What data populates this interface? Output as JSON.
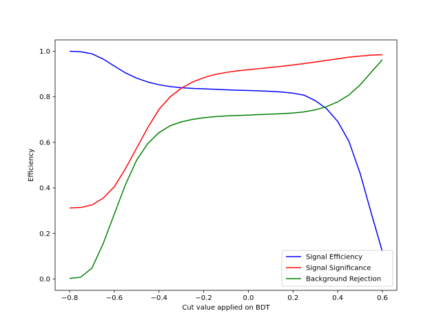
{
  "chart_data": {
    "type": "line",
    "title": "",
    "xlabel": "Cut value applied on BDT",
    "ylabel": "Efficiency",
    "xlim": [
      -0.865,
      0.665
    ],
    "ylim": [
      -0.05,
      1.05
    ],
    "xticks": [
      -0.8,
      -0.6,
      -0.4,
      -0.2,
      0.0,
      0.2,
      0.4,
      0.6
    ],
    "xtick_labels": [
      "−0.8",
      "−0.6",
      "−0.4",
      "−0.2",
      "0.0",
      "0.2",
      "0.4",
      "0.6"
    ],
    "yticks": [
      0.0,
      0.2,
      0.4,
      0.6,
      0.8,
      1.0
    ],
    "ytick_labels": [
      "0.0",
      "0.2",
      "0.4",
      "0.6",
      "0.8",
      "1.0"
    ],
    "grid": false,
    "legend_position": "lower-right",
    "x": [
      -0.8,
      -0.75,
      -0.7,
      -0.65,
      -0.6,
      -0.55,
      -0.5,
      -0.45,
      -0.4,
      -0.35,
      -0.3,
      -0.25,
      -0.2,
      -0.15,
      -0.1,
      -0.05,
      0.0,
      0.05,
      0.1,
      0.15,
      0.2,
      0.25,
      0.3,
      0.35,
      0.4,
      0.45,
      0.5,
      0.55,
      0.6
    ],
    "series": [
      {
        "name": "Signal Efficiency",
        "color": "#0000ff",
        "values": [
          1.0,
          0.998,
          0.989,
          0.966,
          0.935,
          0.905,
          0.882,
          0.865,
          0.853,
          0.845,
          0.84,
          0.837,
          0.835,
          0.833,
          0.831,
          0.829,
          0.828,
          0.826,
          0.824,
          0.821,
          0.816,
          0.807,
          0.783,
          0.748,
          0.692,
          0.605,
          0.465,
          0.29,
          0.12
        ]
      },
      {
        "name": "Signal Significance",
        "color": "#ff0000",
        "values": [
          0.312,
          0.314,
          0.325,
          0.355,
          0.405,
          0.485,
          0.575,
          0.665,
          0.745,
          0.8,
          0.838,
          0.865,
          0.884,
          0.898,
          0.907,
          0.914,
          0.919,
          0.924,
          0.929,
          0.934,
          0.94,
          0.946,
          0.953,
          0.96,
          0.967,
          0.974,
          0.979,
          0.983,
          0.985
        ]
      },
      {
        "name": "Background Rejection",
        "color": "#008000",
        "values": [
          0.002,
          0.008,
          0.048,
          0.155,
          0.285,
          0.415,
          0.522,
          0.595,
          0.643,
          0.673,
          0.69,
          0.701,
          0.708,
          0.713,
          0.716,
          0.718,
          0.72,
          0.722,
          0.724,
          0.726,
          0.729,
          0.734,
          0.743,
          0.757,
          0.778,
          0.808,
          0.852,
          0.908,
          0.963
        ]
      }
    ]
  }
}
